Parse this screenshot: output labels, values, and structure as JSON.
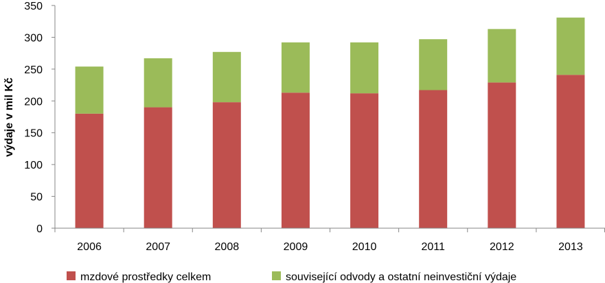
{
  "chart_data": {
    "type": "bar",
    "stacked": true,
    "categories": [
      "2006",
      "2007",
      "2008",
      "2009",
      "2010",
      "2011",
      "2012",
      "2013"
    ],
    "series": [
      {
        "name": "mzdové prostředky celkem",
        "color": "#C0504D",
        "values": [
          180,
          190,
          198,
          213,
          212,
          217,
          229,
          241
        ]
      },
      {
        "name": "související odvody a ostatní neinvestiční výdaje",
        "color": "#9BBB59",
        "values": [
          74,
          77,
          79,
          79,
          80,
          80,
          84,
          90
        ]
      }
    ],
    "title": "",
    "xlabel": "",
    "ylabel": "výdaje v mil Kč",
    "ylim": [
      0,
      350
    ],
    "yticks": [
      "0",
      "50",
      "100",
      "150",
      "200",
      "250",
      "300",
      "350"
    ],
    "grid": false,
    "legend_position": "bottom"
  }
}
